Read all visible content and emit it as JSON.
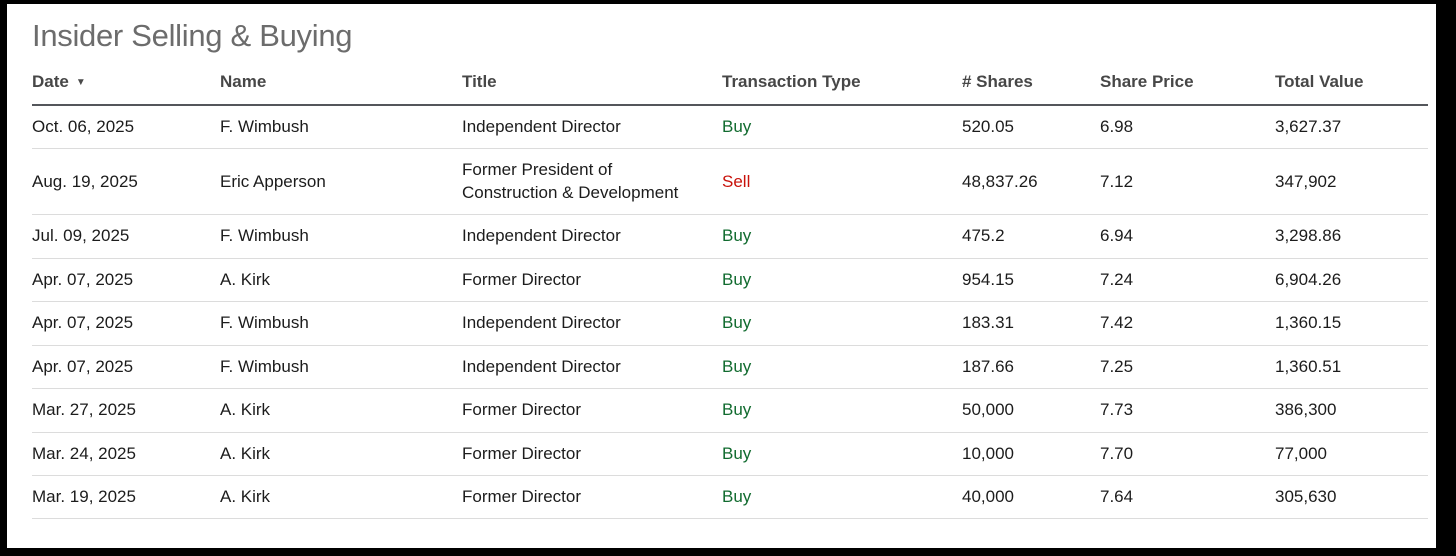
{
  "page": {
    "title": "Insider Selling & Buying"
  },
  "icons": {
    "sort_desc": "▼"
  },
  "colors": {
    "buy": "#116b2f",
    "sell": "#c8120b",
    "title_text": "#6c6c6c",
    "header_text": "#474747",
    "body_text": "#1c1c1c",
    "header_rule": "#54565b",
    "row_rule": "#dcdcdc"
  },
  "table": {
    "columns": [
      {
        "key": "date",
        "label": "Date",
        "sorted": "desc"
      },
      {
        "key": "name",
        "label": "Name"
      },
      {
        "key": "title",
        "label": "Title"
      },
      {
        "key": "transaction_type",
        "label": "Transaction Type"
      },
      {
        "key": "shares",
        "label": "# Shares"
      },
      {
        "key": "share_price",
        "label": "Share Price"
      },
      {
        "key": "total_value",
        "label": "Total Value"
      }
    ],
    "rows": [
      {
        "date": "Oct. 06, 2025",
        "name": "F. Wimbush",
        "title": "Independent Director",
        "transaction_type": "Buy",
        "shares": "520.05",
        "share_price": "6.98",
        "total_value": "3,627.37"
      },
      {
        "date": "Aug. 19, 2025",
        "name": "Eric Apperson",
        "title": "Former President of Construction & Development",
        "transaction_type": "Sell",
        "shares": "48,837.26",
        "share_price": "7.12",
        "total_value": "347,902"
      },
      {
        "date": "Jul. 09, 2025",
        "name": "F. Wimbush",
        "title": "Independent Director",
        "transaction_type": "Buy",
        "shares": "475.2",
        "share_price": "6.94",
        "total_value": "3,298.86"
      },
      {
        "date": "Apr. 07, 2025",
        "name": "A. Kirk",
        "title": "Former Director",
        "transaction_type": "Buy",
        "shares": "954.15",
        "share_price": "7.24",
        "total_value": "6,904.26"
      },
      {
        "date": "Apr. 07, 2025",
        "name": "F. Wimbush",
        "title": "Independent Director",
        "transaction_type": "Buy",
        "shares": "183.31",
        "share_price": "7.42",
        "total_value": "1,360.15"
      },
      {
        "date": "Apr. 07, 2025",
        "name": "F. Wimbush",
        "title": "Independent Director",
        "transaction_type": "Buy",
        "shares": "187.66",
        "share_price": "7.25",
        "total_value": "1,360.51"
      },
      {
        "date": "Mar. 27, 2025",
        "name": "A. Kirk",
        "title": "Former Director",
        "transaction_type": "Buy",
        "shares": "50,000",
        "share_price": "7.73",
        "total_value": "386,300"
      },
      {
        "date": "Mar. 24, 2025",
        "name": "A. Kirk",
        "title": "Former Director",
        "transaction_type": "Buy",
        "shares": "10,000",
        "share_price": "7.70",
        "total_value": "77,000"
      },
      {
        "date": "Mar. 19, 2025",
        "name": "A. Kirk",
        "title": "Former Director",
        "transaction_type": "Buy",
        "shares": "40,000",
        "share_price": "7.64",
        "total_value": "305,630"
      }
    ]
  }
}
